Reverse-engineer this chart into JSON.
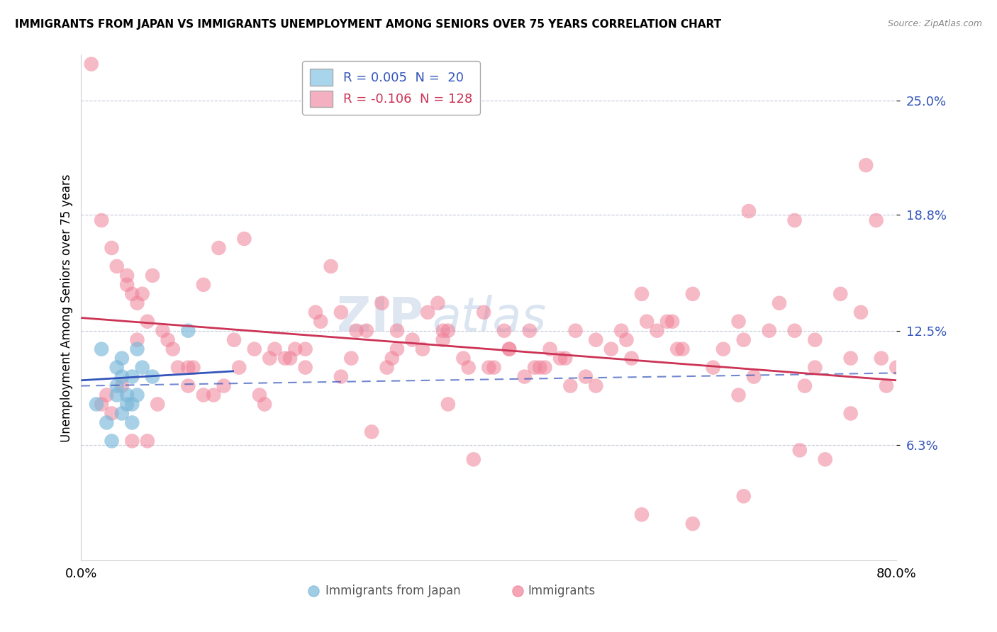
{
  "title": "IMMIGRANTS FROM JAPAN VS IMMIGRANTS UNEMPLOYMENT AMONG SENIORS OVER 75 YEARS CORRELATION CHART",
  "source": "Source: ZipAtlas.com",
  "ylabel": "Unemployment Among Seniors over 75 years",
  "y_ticks": [
    6.3,
    12.5,
    18.8,
    25.0
  ],
  "x_lim": [
    0.0,
    80.0
  ],
  "y_lim": [
    0.0,
    27.5
  ],
  "legend1_label": "R = 0.005  N =  20",
  "legend2_label": "R = -0.106  N = 128",
  "legend1_color": "#a8d4ec",
  "legend2_color": "#f4afc0",
  "series1_color": "#7ab8d9",
  "series2_color": "#f08098",
  "trend1_color": "#3355bb",
  "trend2_color": "#cc3355",
  "watermark_zip": "ZIP",
  "watermark_atlas": "atlas",
  "background_color": "#ffffff",
  "series1_x": [
    1.5,
    2.0,
    2.5,
    3.0,
    3.5,
    3.5,
    3.5,
    4.0,
    4.0,
    4.0,
    4.5,
    4.5,
    5.0,
    5.0,
    5.0,
    5.5,
    5.5,
    6.0,
    7.0,
    10.5
  ],
  "series1_y": [
    8.5,
    11.5,
    7.5,
    6.5,
    9.0,
    9.5,
    10.5,
    8.0,
    10.0,
    11.0,
    8.5,
    9.0,
    7.5,
    8.5,
    10.0,
    9.0,
    11.5,
    10.5,
    10.0,
    12.5
  ],
  "series2_x": [
    1.0,
    2.0,
    3.0,
    3.5,
    4.5,
    5.0,
    5.5,
    6.0,
    6.5,
    7.0,
    8.0,
    9.0,
    9.5,
    10.5,
    11.0,
    12.0,
    13.5,
    14.0,
    15.0,
    16.0,
    17.0,
    18.5,
    19.0,
    20.0,
    21.0,
    22.0,
    23.5,
    24.5,
    25.5,
    27.0,
    28.0,
    29.5,
    30.0,
    31.0,
    32.5,
    33.5,
    34.0,
    35.0,
    36.0,
    37.5,
    38.0,
    39.5,
    40.0,
    41.5,
    42.0,
    43.5,
    44.0,
    45.0,
    46.0,
    47.5,
    48.5,
    49.5,
    50.5,
    52.0,
    53.0,
    54.0,
    55.0,
    56.5,
    57.5,
    58.5,
    60.0,
    62.0,
    63.0,
    64.5,
    65.5,
    66.0,
    67.5,
    68.5,
    70.0,
    71.0,
    72.0,
    73.0,
    74.5,
    75.5,
    76.5,
    77.0,
    78.0,
    79.0,
    55.0,
    60.0,
    65.0,
    70.5,
    48.0,
    36.0,
    28.5,
    18.0,
    12.0,
    7.5,
    6.5,
    5.0,
    4.0,
    3.0,
    2.5,
    2.0,
    5.5,
    10.5,
    15.5,
    20.5,
    25.5,
    30.5,
    35.5,
    40.5,
    45.5,
    50.5,
    58.0,
    65.0,
    72.0,
    78.5,
    4.5,
    8.5,
    13.0,
    17.5,
    22.0,
    26.5,
    31.0,
    35.5,
    42.0,
    47.0,
    53.5,
    59.0,
    64.5,
    70.0,
    75.5,
    80.0,
    38.5,
    44.5,
    23.0,
    55.5
  ],
  "series2_y": [
    27.0,
    18.5,
    17.0,
    16.0,
    15.5,
    14.5,
    14.0,
    14.5,
    13.0,
    15.5,
    12.5,
    11.5,
    10.5,
    9.5,
    10.5,
    9.0,
    17.0,
    9.5,
    12.0,
    17.5,
    11.5,
    11.0,
    11.5,
    11.0,
    11.5,
    10.5,
    13.0,
    16.0,
    13.5,
    12.5,
    12.5,
    14.0,
    10.5,
    11.5,
    12.0,
    11.5,
    13.5,
    14.0,
    12.5,
    11.0,
    10.5,
    13.5,
    10.5,
    12.5,
    11.5,
    10.0,
    12.5,
    10.5,
    11.5,
    11.0,
    12.5,
    10.0,
    9.5,
    11.5,
    12.5,
    11.0,
    14.5,
    12.5,
    13.0,
    11.5,
    14.5,
    10.5,
    11.5,
    9.0,
    19.0,
    10.0,
    12.5,
    14.0,
    18.5,
    9.5,
    12.0,
    5.5,
    14.5,
    8.0,
    13.5,
    21.5,
    18.5,
    9.5,
    2.5,
    2.0,
    3.5,
    6.0,
    9.5,
    8.5,
    7.0,
    8.5,
    15.0,
    8.5,
    6.5,
    6.5,
    9.5,
    8.0,
    9.0,
    8.5,
    12.0,
    10.5,
    10.5,
    11.0,
    10.0,
    11.0,
    12.5,
    10.5,
    10.5,
    12.0,
    13.0,
    12.0,
    10.5,
    11.0,
    15.0,
    12.0,
    9.0,
    9.0,
    11.5,
    11.0,
    12.5,
    12.0,
    11.5,
    11.0,
    12.0,
    11.5,
    13.0,
    12.5,
    11.0,
    10.5,
    5.5,
    10.5,
    13.5,
    13.0
  ],
  "trend1_y_start": 9.8,
  "trend1_y_end": 10.3,
  "trend2_y_start": 13.2,
  "trend2_y_end": 9.8,
  "dash_y_start": 9.5,
  "dash_y_end": 10.2
}
